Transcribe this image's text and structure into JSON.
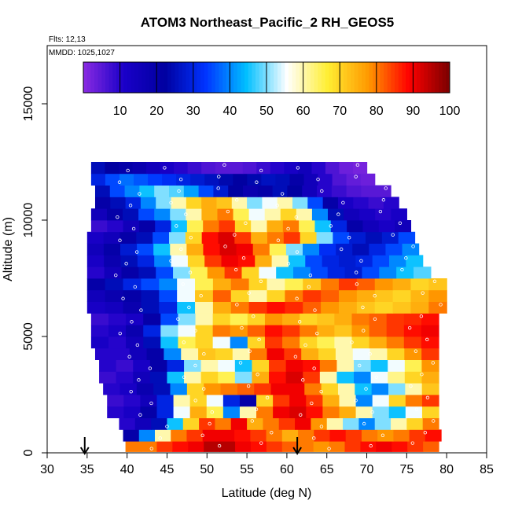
{
  "chart_data": {
    "type": "heatmap",
    "title": "ATOM3 Northeast_Pacific_2 RH_GEOS5",
    "flights_label": "Flts: 12,13",
    "mmdd_label": "MMDD: 1025,1027",
    "xlabel": "Latitude (deg N)",
    "ylabel": "Altitude (m)",
    "xlim": [
      30,
      85
    ],
    "ylim": [
      0,
      17500
    ],
    "xticks": [
      "30",
      "35",
      "40",
      "45",
      "50",
      "55",
      "60",
      "65",
      "70",
      "75",
      "80",
      "85"
    ],
    "yticks": [
      "0",
      "5000",
      "10000",
      "15000"
    ],
    "colorbar": {
      "ticks": [
        "10",
        "20",
        "30",
        "40",
        "50",
        "60",
        "70",
        "80",
        "90",
        "100"
      ],
      "range": [
        0,
        100
      ],
      "colors": [
        "#8a2be2",
        "#1a00c8",
        "#0000a0",
        "#0033ff",
        "#00bfff",
        "#ffffff",
        "#ffee33",
        "#ff9900",
        "#ff0000",
        "#7a0000"
      ]
    },
    "bands": [
      {
        "alt": 300,
        "lat": [
          39.8,
          79.0
        ],
        "rh": [
          80,
          80,
          85,
          88,
          90,
          95,
          95,
          90,
          88,
          85,
          82,
          80,
          78,
          80,
          85,
          88,
          90,
          88,
          85,
          82
        ]
      },
      {
        "alt": 750,
        "lat": [
          39.5,
          79.3
        ],
        "rh": [
          20,
          40,
          60,
          80,
          85,
          90,
          90,
          88,
          85,
          80,
          75,
          80,
          85,
          88,
          85,
          80,
          78,
          80,
          85,
          88
        ]
      },
      {
        "alt": 1250,
        "lat": [
          39.0,
          79.0
        ],
        "rh": [
          10,
          15,
          25,
          45,
          70,
          85,
          80,
          90,
          75,
          80,
          85,
          90,
          78,
          60,
          50,
          40,
          50,
          60,
          70,
          80
        ]
      },
      {
        "alt": 1750,
        "lat": [
          37.5,
          79.0
        ],
        "rh": [
          10,
          12,
          20,
          30,
          55,
          75,
          65,
          40,
          60,
          80,
          90,
          92,
          88,
          80,
          75,
          60,
          50,
          45,
          55,
          70
        ]
      },
      {
        "alt": 2250,
        "lat": [
          37.5,
          79.0
        ],
        "rh": [
          8,
          10,
          15,
          30,
          60,
          70,
          55,
          30,
          20,
          70,
          85,
          90,
          85,
          75,
          60,
          40,
          55,
          70,
          80,
          85
        ]
      },
      {
        "alt": 2750,
        "lat": [
          37.0,
          79.0
        ],
        "rh": [
          10,
          12,
          18,
          25,
          40,
          70,
          78,
          80,
          82,
          85,
          90,
          90,
          80,
          70,
          60,
          45,
          40,
          50,
          60,
          72
        ]
      },
      {
        "alt": 3250,
        "lat": [
          36.5,
          79.0
        ],
        "rh": [
          8,
          10,
          15,
          25,
          45,
          60,
          70,
          65,
          50,
          75,
          88,
          92,
          85,
          60,
          45,
          40,
          55,
          62,
          70,
          75
        ]
      },
      {
        "alt": 3750,
        "lat": [
          36.5,
          79.0
        ],
        "rh": [
          10,
          8,
          12,
          20,
          30,
          50,
          60,
          55,
          45,
          70,
          85,
          90,
          88,
          80,
          60,
          50,
          45,
          55,
          65,
          78
        ]
      },
      {
        "alt": 4250,
        "lat": [
          36.0,
          79.0
        ],
        "rh": [
          10,
          10,
          15,
          20,
          40,
          60,
          72,
          70,
          60,
          80,
          90,
          85,
          75,
          70,
          60,
          55,
          60,
          70,
          78,
          85
        ]
      },
      {
        "alt": 4750,
        "lat": [
          35.5,
          79.0
        ],
        "rh": [
          12,
          10,
          15,
          25,
          45,
          65,
          70,
          55,
          40,
          70,
          85,
          80,
          70,
          65,
          60,
          70,
          75,
          80,
          85,
          88
        ]
      },
      {
        "alt": 5250,
        "lat": [
          35.5,
          79.0
        ],
        "rh": [
          10,
          12,
          18,
          30,
          50,
          55,
          70,
          80,
          78,
          82,
          88,
          85,
          80,
          75,
          72,
          78,
          82,
          85,
          88,
          90
        ]
      },
      {
        "alt": 5750,
        "lat": [
          35.5,
          79.0
        ],
        "rh": [
          8,
          10,
          12,
          20,
          35,
          50,
          60,
          70,
          65,
          70,
          78,
          75,
          70,
          72,
          75,
          80,
          82,
          85,
          86,
          88
        ]
      },
      {
        "alt": 6250,
        "lat": [
          35.0,
          80.0
        ],
        "rh": [
          12,
          14,
          18,
          25,
          30,
          45,
          60,
          75,
          80,
          85,
          88,
          86,
          82,
          78,
          75,
          72,
          70,
          72,
          75,
          80
        ]
      },
      {
        "alt": 6750,
        "lat": [
          35.0,
          80.0
        ],
        "rh": [
          15,
          18,
          20,
          25,
          35,
          55,
          72,
          82,
          70,
          60,
          70,
          80,
          85,
          82,
          78,
          75,
          72,
          70,
          74,
          78
        ]
      },
      {
        "alt": 7250,
        "lat": [
          35.0,
          80.0
        ],
        "rh": [
          20,
          25,
          30,
          35,
          40,
          55,
          65,
          75,
          80,
          70,
          60,
          65,
          72,
          80,
          85,
          82,
          78,
          75,
          70,
          72
        ]
      },
      {
        "alt": 7750,
        "lat": [
          35.0,
          78.0
        ],
        "rh": [
          10,
          15,
          20,
          25,
          35,
          50,
          65,
          78,
          85,
          70,
          55,
          45,
          40,
          35,
          30,
          28,
          35,
          40,
          45,
          48
        ]
      },
      {
        "alt": 8250,
        "lat": [
          35.0,
          77.0
        ],
        "rh": [
          12,
          18,
          25,
          30,
          40,
          55,
          70,
          85,
          90,
          88,
          75,
          60,
          45,
          35,
          30,
          28,
          30,
          35,
          40,
          45
        ]
      },
      {
        "alt": 8750,
        "lat": [
          35.0,
          76.5
        ],
        "rh": [
          15,
          20,
          28,
          35,
          45,
          60,
          75,
          88,
          92,
          90,
          80,
          65,
          50,
          40,
          32,
          28,
          25,
          30,
          35,
          40
        ]
      },
      {
        "alt": 9250,
        "lat": [
          35.0,
          76.0
        ],
        "rh": [
          12,
          15,
          20,
          25,
          35,
          50,
          70,
          88,
          92,
          85,
          75,
          80,
          85,
          70,
          50,
          35,
          28,
          25,
          28,
          35
        ]
      },
      {
        "alt": 9750,
        "lat": [
          35.5,
          75.5
        ],
        "rh": [
          8,
          10,
          15,
          20,
          30,
          45,
          65,
          80,
          85,
          70,
          60,
          75,
          80,
          65,
          45,
          30,
          20,
          15,
          12,
          15
        ]
      },
      {
        "alt": 10250,
        "lat": [
          35.5,
          75.0
        ],
        "rh": [
          15,
          20,
          25,
          35,
          40,
          50,
          60,
          75,
          80,
          65,
          55,
          60,
          70,
          60,
          40,
          25,
          15,
          12,
          10,
          12
        ]
      },
      {
        "alt": 10750,
        "lat": [
          36.0,
          74.0
        ],
        "rh": [
          20,
          25,
          30,
          40,
          50,
          60,
          70,
          75,
          72,
          60,
          50,
          55,
          60,
          50,
          35,
          20,
          12,
          10,
          8,
          10
        ]
      },
      {
        "alt": 11250,
        "lat": [
          36.0,
          73.0
        ],
        "rh": [
          25,
          35,
          40,
          45,
          50,
          48,
          42,
          35,
          28,
          22,
          18,
          20,
          25,
          22,
          15,
          10,
          8,
          6,
          5,
          5
        ]
      },
      {
        "alt": 11750,
        "lat": [
          35.5,
          71.0
        ],
        "rh": [
          30,
          35,
          38,
          36,
          34,
          32,
          30,
          28,
          26,
          24,
          22,
          24,
          26,
          25,
          20,
          15,
          10,
          6,
          4,
          3
        ]
      },
      {
        "alt": 12250,
        "lat": [
          35.5,
          70.0
        ],
        "rh": [
          25,
          22,
          20,
          18,
          15,
          12,
          10,
          8,
          6,
          5,
          5,
          6,
          8,
          10,
          12,
          15,
          10,
          6,
          3,
          2
        ]
      }
    ],
    "arrows_lat": [
      34.7,
      61.3
    ]
  }
}
